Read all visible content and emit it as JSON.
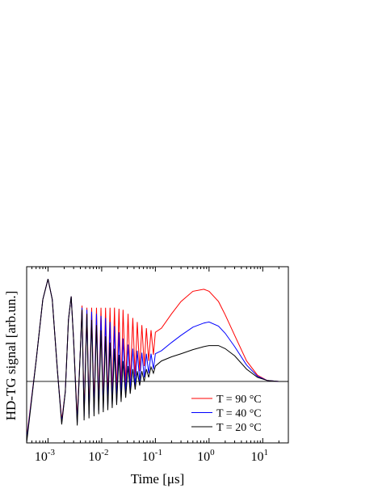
{
  "chart_data": {
    "type": "line",
    "xlabel": "Time [μs]",
    "ylabel": "HD-TG signal [arb.un.]",
    "xscale": "log",
    "xlim": [
      0.0004,
      30
    ],
    "ylim": [
      -0.6,
      1.12
    ],
    "xticks": [
      {
        "value": 0.001,
        "label": "10",
        "exponent": "-3"
      },
      {
        "value": 0.01,
        "label": "10",
        "exponent": "-2"
      },
      {
        "value": 0.1,
        "label": "10",
        "exponent": "-1"
      },
      {
        "value": 1,
        "label": "10",
        "exponent": "0"
      },
      {
        "value": 10,
        "label": "10",
        "exponent": "1"
      }
    ],
    "xminorticks": [
      0.0004,
      0.0005,
      0.0006,
      0.0007,
      0.0008,
      0.0009,
      0.002,
      0.003,
      0.004,
      0.005,
      0.006,
      0.007,
      0.008,
      0.009,
      0.02,
      0.03,
      0.04,
      0.05,
      0.06,
      0.07,
      0.08,
      0.09,
      0.2,
      0.3,
      0.4,
      0.5,
      0.6,
      0.7,
      0.8,
      0.9,
      2,
      3,
      4,
      5,
      6,
      7,
      8,
      9,
      20,
      30
    ],
    "zero_line": 0,
    "legend": "lower right",
    "x": [
      0.0004,
      0.0006,
      0.0008,
      0.001,
      0.0012,
      0.0015,
      0.0018,
      0.0021,
      0.0024,
      0.0027,
      0.003,
      0.0035,
      0.004,
      0.0043,
      0.0047,
      0.0053,
      0.0058,
      0.0065,
      0.0072,
      0.008,
      0.0088,
      0.0097,
      0.0107,
      0.0118,
      0.013,
      0.0143,
      0.0157,
      0.0173,
      0.019,
      0.021,
      0.023,
      0.025,
      0.028,
      0.031,
      0.034,
      0.038,
      0.042,
      0.046,
      0.051,
      0.056,
      0.062,
      0.068,
      0.075,
      0.083,
      0.092,
      0.1,
      0.13,
      0.2,
      0.3,
      0.5,
      0.8,
      1,
      1.5,
      2,
      3,
      5,
      8,
      12,
      20,
      30
    ],
    "series": [
      {
        "name": "T = 90 °C",
        "color": "#ff0000",
        "values": [
          -0.55,
          0.2,
          0.8,
          1.0,
          0.8,
          0.1,
          -0.38,
          -0.1,
          0.6,
          0.83,
          0.4,
          -0.36,
          0.3,
          0.74,
          -0.3,
          0.72,
          -0.28,
          0.72,
          -0.25,
          0.72,
          -0.22,
          0.72,
          -0.2,
          0.72,
          -0.18,
          0.72,
          -0.15,
          0.72,
          -0.12,
          0.71,
          -0.08,
          0.7,
          -0.04,
          0.66,
          0.0,
          0.62,
          0.05,
          0.58,
          0.1,
          0.55,
          0.15,
          0.52,
          0.2,
          0.5,
          0.26,
          0.48,
          0.52,
          0.66,
          0.78,
          0.88,
          0.9,
          0.88,
          0.78,
          0.65,
          0.45,
          0.2,
          0.06,
          0.01,
          0,
          0
        ]
      },
      {
        "name": "T = 40 °C",
        "color": "#0000ff",
        "values": [
          -0.57,
          0.2,
          0.8,
          1.0,
          0.8,
          0.1,
          -0.4,
          -0.1,
          0.6,
          0.83,
          0.4,
          -0.4,
          0.3,
          0.72,
          -0.34,
          0.7,
          -0.32,
          0.68,
          -0.3,
          0.66,
          -0.28,
          0.64,
          -0.26,
          0.62,
          -0.24,
          0.58,
          -0.22,
          0.54,
          -0.2,
          0.48,
          -0.16,
          0.42,
          -0.12,
          0.36,
          -0.08,
          0.32,
          -0.04,
          0.3,
          0.0,
          0.28,
          0.04,
          0.27,
          0.08,
          0.27,
          0.12,
          0.27,
          0.3,
          0.38,
          0.45,
          0.53,
          0.57,
          0.58,
          0.54,
          0.47,
          0.34,
          0.16,
          0.05,
          0.01,
          0,
          0
        ]
      },
      {
        "name": "T = 20 °C",
        "color": "#000000",
        "values": [
          -0.6,
          0.2,
          0.8,
          1.0,
          0.8,
          0.1,
          -0.42,
          -0.1,
          0.6,
          0.83,
          0.4,
          -0.43,
          0.3,
          0.7,
          -0.38,
          0.66,
          -0.36,
          0.6,
          -0.34,
          0.55,
          -0.32,
          0.5,
          -0.3,
          0.44,
          -0.28,
          0.38,
          -0.26,
          0.32,
          -0.23,
          0.26,
          -0.2,
          0.2,
          -0.16,
          0.15,
          -0.12,
          0.12,
          -0.08,
          0.1,
          -0.04,
          0.1,
          0.0,
          0.12,
          0.04,
          0.14,
          0.08,
          0.15,
          0.2,
          0.24,
          0.27,
          0.31,
          0.34,
          0.35,
          0.35,
          0.32,
          0.25,
          0.12,
          0.04,
          0.01,
          0,
          0
        ]
      }
    ]
  }
}
